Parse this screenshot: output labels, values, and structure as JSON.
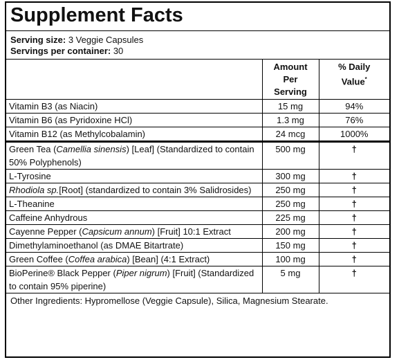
{
  "title": "Supplement Facts",
  "serving": {
    "size_label": "Serving size:",
    "size_value": " 3 Veggie Capsules",
    "per_container_label": "Servings per container:",
    "per_container_value": " 30"
  },
  "header": {
    "amount": [
      "Amount",
      "Per",
      "Serving"
    ],
    "daily": [
      "% Daily",
      "Value"
    ],
    "daily_mark": "*"
  },
  "vitamins": [
    {
      "name": "Vitamin B3 (as Niacin)",
      "amount": "15 mg",
      "dv": "94%"
    },
    {
      "name": "Vitamin B6 (as Pyridoxine HCl)",
      "amount": "1.3 mg",
      "dv": "76%"
    },
    {
      "name": "Vitamin B12 (as Methylcobalamin)",
      "amount": "24 mcg",
      "dv": "1000%"
    }
  ],
  "ingredients": [
    {
      "pre": "Green Tea (",
      "ital": "Camellia sinensis",
      "post": ") [Leaf] (Standardized to contain 50% Polyphenols)",
      "amount": "500 mg",
      "dv": "†"
    },
    {
      "pre": "L-Tyrosine",
      "ital": "",
      "post": "",
      "amount": "300 mg",
      "dv": "†"
    },
    {
      "pre": "",
      "ital": "Rhodiola sp.",
      "post": "[Root] (standardized to contain 3% Salidrosides)",
      "amount": "250 mg",
      "dv": "†"
    },
    {
      "pre": "L-Theanine",
      "ital": "",
      "post": "",
      "amount": "250 mg",
      "dv": "†"
    },
    {
      "pre": "Caffeine Anhydrous",
      "ital": "",
      "post": "",
      "amount": "225 mg",
      "dv": "†"
    },
    {
      "pre": "Cayenne Pepper (",
      "ital": "Capsicum annum",
      "post": ") [Fruit] 10:1 Extract",
      "amount": "200 mg",
      "dv": "†"
    },
    {
      "pre": "Dimethylaminoethanol (as DMAE Bitartrate)",
      "ital": "",
      "post": "",
      "amount": "150 mg",
      "dv": "†"
    },
    {
      "pre": "Green Coffee (",
      "ital": "Coffea arabica",
      "post": ") [Bean] (4:1 Extract)",
      "amount": "100 mg",
      "dv": "†"
    },
    {
      "pre": "BioPerine® Black Pepper (",
      "ital": "Piper nigrum",
      "post": ") [Fruit] (Standardized to contain 95% piperine)",
      "amount": "5 mg",
      "dv": "†"
    }
  ],
  "other": "Other Ingredients: Hypromellose (Veggie Capsule), Silica, Magnesium Stearate."
}
